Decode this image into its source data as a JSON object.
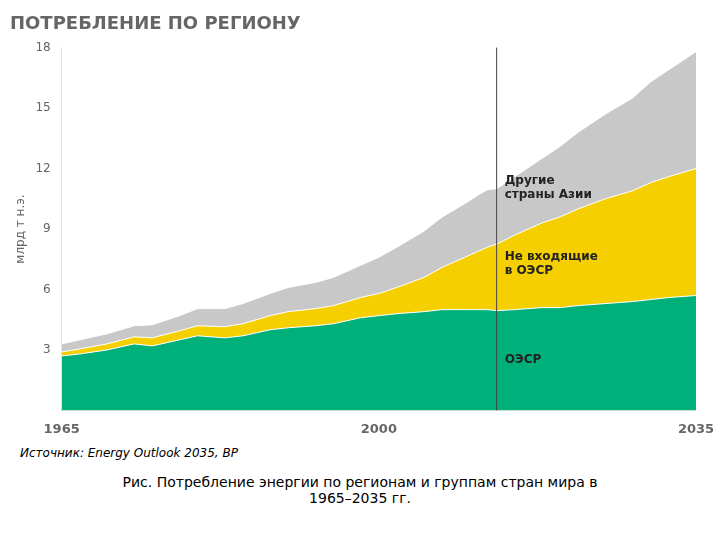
{
  "chart_data": {
    "type": "area",
    "stacked": true,
    "title": "ПОТРЕБЛЕНИЕ ПО РЕГИОНУ",
    "ylabel": "млрд т н.э.",
    "source": "Источник: Energy Outlook 2035, BP",
    "caption": "Рис. Потребление энергии по регионам и группам стран мира в\n1965–2035 гг.",
    "x": [
      1965,
      1967,
      1970,
      1973,
      1975,
      1978,
      1980,
      1983,
      1985,
      1988,
      1990,
      1993,
      1995,
      1998,
      2000,
      2002,
      2005,
      2007,
      2010,
      2011,
      2012,
      2013,
      2015,
      2018,
      2020,
      2022,
      2025,
      2028,
      2030,
      2032,
      2035
    ],
    "series": [
      {
        "name": "ОЭСР",
        "color": "#00b07a",
        "values": [
          2.7,
          2.8,
          3.0,
          3.3,
          3.2,
          3.5,
          3.7,
          3.6,
          3.7,
          4.0,
          4.1,
          4.2,
          4.3,
          4.6,
          4.7,
          4.8,
          4.9,
          5.0,
          5.0,
          5.0,
          5.0,
          4.95,
          5.0,
          5.1,
          5.1,
          5.2,
          5.3,
          5.4,
          5.5,
          5.6,
          5.7
        ]
      },
      {
        "name": "Не входящие\nв ОЭСР",
        "color": "#f5cf00",
        "values": [
          0.2,
          0.25,
          0.3,
          0.35,
          0.4,
          0.45,
          0.5,
          0.55,
          0.6,
          0.7,
          0.8,
          0.85,
          0.9,
          1.0,
          1.1,
          1.3,
          1.7,
          2.1,
          2.7,
          2.9,
          3.1,
          3.3,
          3.7,
          4.2,
          4.5,
          4.8,
          5.2,
          5.5,
          5.8,
          6.0,
          6.3
        ]
      },
      {
        "name": "Другие\nстраны Азии",
        "color": "#c8c8c8",
        "values": [
          0.4,
          0.45,
          0.5,
          0.55,
          0.65,
          0.75,
          0.85,
          0.9,
          1.0,
          1.1,
          1.2,
          1.3,
          1.4,
          1.6,
          1.8,
          2.0,
          2.3,
          2.5,
          2.7,
          2.8,
          2.85,
          2.75,
          2.9,
          3.2,
          3.5,
          3.8,
          4.2,
          4.6,
          5.0,
          5.3,
          5.8
        ]
      }
    ],
    "vline": 2013,
    "vline_color": "#444444",
    "xlim": [
      1965,
      2035
    ],
    "xticks": [
      1965,
      2000,
      2035
    ],
    "ylim": [
      0,
      18
    ],
    "yticks": [
      {
        "value": 0,
        "label": ""
      },
      3,
      6,
      9,
      12,
      15,
      18
    ],
    "grid": false
  }
}
